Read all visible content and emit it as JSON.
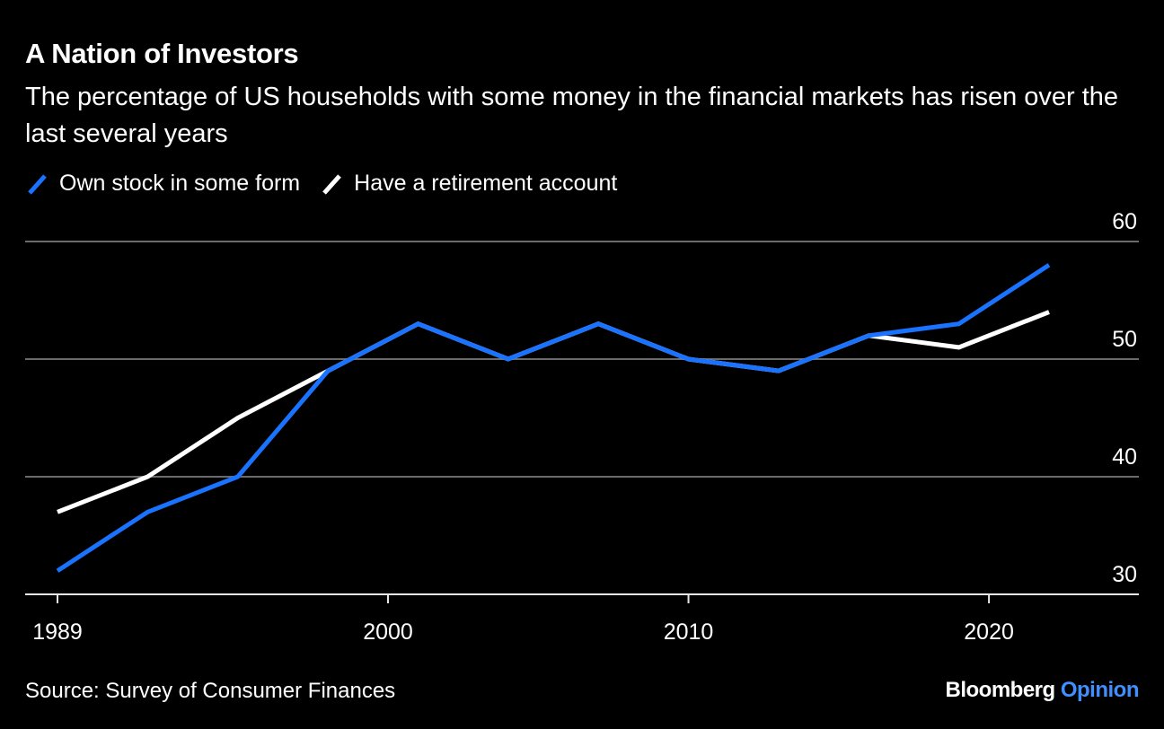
{
  "chart_data": {
    "type": "line",
    "title": "A Nation of Investors",
    "subtitle": "The percentage of US households with some money in the financial markets has risen over the last several years",
    "x": [
      1989,
      1992,
      1995,
      1998,
      2001,
      2004,
      2007,
      2010,
      2013,
      2016,
      2019,
      2022
    ],
    "series": [
      {
        "name": "Own stock in some form",
        "color": "#1a73ff",
        "values": [
          32,
          37,
          40,
          49,
          53,
          50,
          53,
          50,
          49,
          52,
          53,
          58
        ]
      },
      {
        "name": "Have a retirement account",
        "color": "#ffffff",
        "values": [
          37,
          40,
          45,
          49,
          53,
          50,
          53,
          50,
          49,
          52,
          51,
          54
        ]
      }
    ],
    "xticks": [
      1989,
      2000,
      2010,
      2020
    ],
    "yticks": [
      30,
      40,
      50,
      60
    ],
    "xlim": [
      1988,
      2024
    ],
    "ylim": [
      30,
      60
    ],
    "grid": "horizontal",
    "y_axis_side": "right",
    "legend_placement": "top-left"
  },
  "source": "Source: Survey of Consumer Finances",
  "brand": {
    "name": "Bloomberg",
    "suffix": "Opinion"
  }
}
